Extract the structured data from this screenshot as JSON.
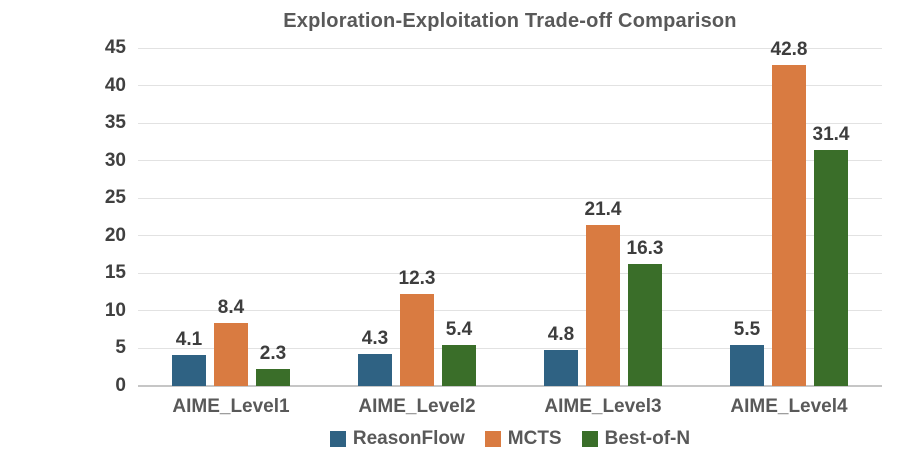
{
  "chart_data": {
    "type": "bar",
    "title": "Exploration-Exploitation Trade-off Comparison",
    "categories": [
      "AIME_Level1",
      "AIME_Level2",
      "AIME_Level3",
      "AIME_Level4"
    ],
    "series": [
      {
        "name": "ReasonFlow",
        "color": "#2F6283",
        "values": [
          4.1,
          4.3,
          4.8,
          5.5
        ]
      },
      {
        "name": "MCTS",
        "color": "#D97B41",
        "values": [
          8.4,
          12.3,
          21.4,
          42.8
        ]
      },
      {
        "name": "Best-of-N",
        "color": "#3A6E29",
        "values": [
          2.3,
          5.4,
          16.3,
          31.4
        ]
      }
    ],
    "xlabel": "",
    "ylabel": "",
    "ylim": [
      0,
      45
    ],
    "yticks": [
      0,
      5,
      10,
      15,
      20,
      25,
      30,
      35,
      40,
      45
    ],
    "grid": true,
    "value_labels_shown": true,
    "legend_position": "bottom"
  },
  "colors": {
    "background": "#ffffff",
    "gridline": "#e2e2e2",
    "baseline": "#c6c6c6",
    "title_text": "#595959",
    "tick_text": "#404040",
    "axis_label_text": "#595959",
    "value_label_text": "#3d3d3d"
  }
}
